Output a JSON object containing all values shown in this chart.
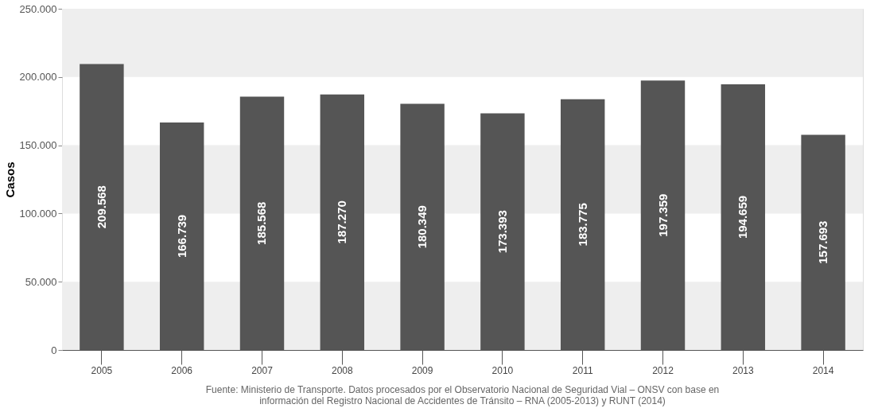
{
  "chart_data": {
    "type": "bar",
    "ylabel": "Casos",
    "categories": [
      "2005",
      "2006",
      "2007",
      "2008",
      "2009",
      "2010",
      "2011",
      "2012",
      "2013",
      "2014"
    ],
    "values": [
      209568,
      166739,
      185568,
      187270,
      180349,
      173393,
      183775,
      197359,
      194659,
      157693
    ],
    "value_labels": [
      "209.568",
      "166.739",
      "185.568",
      "187.270",
      "180.349",
      "173.393",
      "183.775",
      "197.359",
      "194.659",
      "157.693"
    ],
    "color": "#555555",
    "ylim": [
      0,
      250000
    ],
    "yticks": [
      {
        "value": 0,
        "label": "0"
      },
      {
        "value": 50000,
        "label": "50.000"
      },
      {
        "value": 100000,
        "label": "100.000"
      },
      {
        "value": 150000,
        "label": "150.000"
      },
      {
        "value": 200000,
        "label": "200.000"
      },
      {
        "value": 250000,
        "label": "250.000"
      }
    ],
    "bands": [
      {
        "axis": "y",
        "from": 0,
        "to": 50000,
        "label": null,
        "color": "#eeeeee"
      },
      {
        "axis": "y",
        "from": 100000,
        "to": 150000,
        "label": null,
        "color": "#eeeeee"
      },
      {
        "axis": "y",
        "from": 200000,
        "to": 250000,
        "label": null,
        "color": "#eeeeee"
      }
    ],
    "grid": false,
    "annotations": [
      "Fuente: Ministerio de Transporte. Datos procesados por el Observatorio Nacional de Seguridad Vial – ONSV con base en información del Registro Nacional de Accidentes de Tránsito – RNA (2005-2013) y RUNT (2014)"
    ]
  }
}
